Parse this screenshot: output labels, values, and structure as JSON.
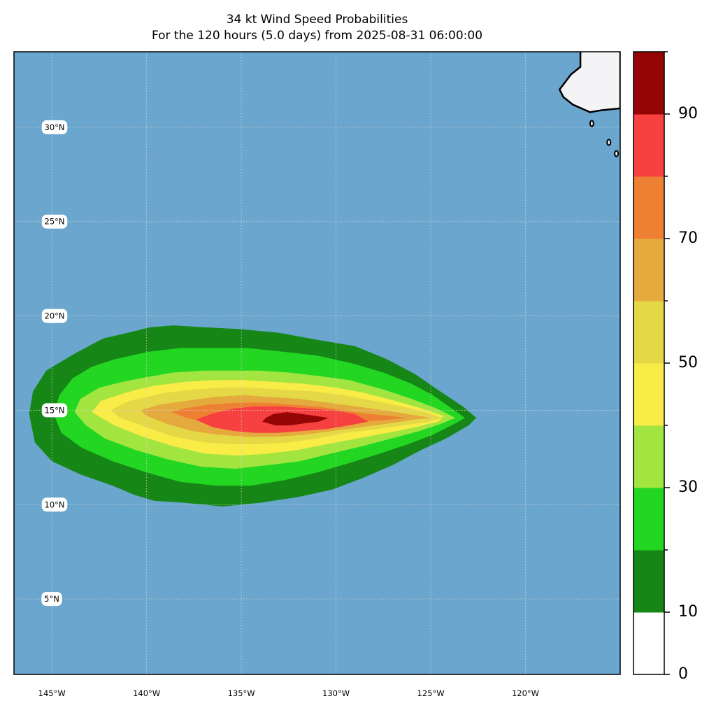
{
  "title": "34 kt Wind Speed Probabilities",
  "subtitle": "For the 120 hours (5.0 days) from 2025-08-31 06:00:00",
  "colors": {
    "ocean": "#6aa6cd",
    "land": "#f4f4f6",
    "grid": "#d8d8d8"
  },
  "map": {
    "lon_range": [
      -147,
      -115
    ],
    "lat_range": [
      1,
      34
    ],
    "lat_labels": [
      {
        "lat": 30,
        "label": "30°N"
      },
      {
        "lat": 25,
        "label": "25°N"
      },
      {
        "lat": 20,
        "label": "20°N"
      },
      {
        "lat": 15,
        "label": "15°N"
      },
      {
        "lat": 10,
        "label": "10°N"
      },
      {
        "lat": 5,
        "label": "5°N"
      }
    ],
    "lon_labels": [
      {
        "lon": -145,
        "label": "145°W"
      },
      {
        "lon": -140,
        "label": "140°W"
      },
      {
        "lon": -135,
        "label": "135°W"
      },
      {
        "lon": -130,
        "label": "130°W"
      },
      {
        "lon": -125,
        "label": "125°W"
      },
      {
        "lon": -120,
        "label": "120°W"
      }
    ]
  },
  "colorbar": {
    "bounds": [
      0,
      10,
      20,
      30,
      40,
      50,
      60,
      70,
      80,
      90,
      100
    ],
    "colors": [
      "#ffffff",
      "#168716",
      "#22d622",
      "#a3e540",
      "#f9ec47",
      "#e5d846",
      "#e5aa3d",
      "#ee8033",
      "#f74040",
      "#950505",
      "#8229d9"
    ],
    "tick_labels": [
      {
        "value": 0,
        "label": "0"
      },
      {
        "value": 10,
        "label": "10"
      },
      {
        "value": 30,
        "label": "30"
      },
      {
        "value": 50,
        "label": "50"
      },
      {
        "value": 70,
        "label": "70"
      },
      {
        "value": 90,
        "label": "90"
      }
    ]
  },
  "probability_contours": [
    {
      "level": 10,
      "color": "#168716",
      "pts": [
        [
          -142.3,
          18.8
        ],
        [
          -141,
          19.1
        ],
        [
          -139.8,
          19.4
        ],
        [
          -138.6,
          19.5
        ],
        [
          -137,
          19.4
        ],
        [
          -135,
          19.3
        ],
        [
          -133,
          19.1
        ],
        [
          -130.8,
          18.7
        ],
        [
          -129,
          18.4
        ],
        [
          -127.3,
          17.7
        ],
        [
          -125.8,
          16.9
        ],
        [
          -124.5,
          16
        ],
        [
          -123.3,
          15.2
        ],
        [
          -122.6,
          14.6
        ],
        [
          -123,
          14.2
        ],
        [
          -124.2,
          13.5
        ],
        [
          -125.5,
          12.9
        ],
        [
          -127,
          12.1
        ],
        [
          -128.6,
          11.4
        ],
        [
          -130.2,
          10.8
        ],
        [
          -132,
          10.4
        ],
        [
          -134,
          10.1
        ],
        [
          -136,
          9.9
        ],
        [
          -138,
          10.1
        ],
        [
          -139.6,
          10.2
        ],
        [
          -140.6,
          10.5
        ],
        [
          -141.8,
          11
        ],
        [
          -143.5,
          11.6
        ],
        [
          -145,
          12.3
        ],
        [
          -145.9,
          13.3
        ],
        [
          -146.2,
          14.8
        ],
        [
          -146,
          16
        ],
        [
          -145.3,
          17.1
        ],
        [
          -143.8,
          18
        ]
      ]
    },
    {
      "level": 20,
      "color": "#22d622",
      "pts": [
        [
          -141.7,
          17.7
        ],
        [
          -139.9,
          18.1
        ],
        [
          -138.2,
          18.3
        ],
        [
          -136.6,
          18.3
        ],
        [
          -134.7,
          18.3
        ],
        [
          -132.8,
          18.1
        ],
        [
          -131,
          17.9
        ],
        [
          -129.2,
          17.5
        ],
        [
          -127.5,
          17
        ],
        [
          -126,
          16.4
        ],
        [
          -124.9,
          15.8
        ],
        [
          -123.9,
          15.1
        ],
        [
          -123.2,
          14.6
        ],
        [
          -123.7,
          14.3
        ],
        [
          -124.9,
          13.7
        ],
        [
          -126.2,
          13.2
        ],
        [
          -127.7,
          12.7
        ],
        [
          -129.3,
          12.2
        ],
        [
          -131,
          11.7
        ],
        [
          -132.7,
          11.3
        ],
        [
          -134.5,
          11
        ],
        [
          -136.3,
          11
        ],
        [
          -138.2,
          11.2
        ],
        [
          -140,
          11.7
        ],
        [
          -141.8,
          12.3
        ],
        [
          -143.4,
          13
        ],
        [
          -144.5,
          13.8
        ],
        [
          -144.9,
          14.8
        ],
        [
          -144.6,
          15.8
        ],
        [
          -143.9,
          16.7
        ],
        [
          -142.9,
          17.3
        ]
      ]
    },
    {
      "level": 30,
      "color": "#a3e540",
      "pts": [
        [
          -140.3,
          16.7
        ],
        [
          -138.6,
          17
        ],
        [
          -137,
          17.1
        ],
        [
          -135.5,
          17.1
        ],
        [
          -134,
          17.1
        ],
        [
          -132.5,
          17
        ],
        [
          -130.8,
          16.8
        ],
        [
          -129.3,
          16.6
        ],
        [
          -127.5,
          16.1
        ],
        [
          -126,
          15.6
        ],
        [
          -124.7,
          15.1
        ],
        [
          -123.7,
          14.6
        ],
        [
          -124.4,
          14.3
        ],
        [
          -125.6,
          13.9
        ],
        [
          -127.1,
          13.5
        ],
        [
          -128.6,
          13.1
        ],
        [
          -130.3,
          12.7
        ],
        [
          -131.9,
          12.3
        ],
        [
          -133.5,
          12.1
        ],
        [
          -135.3,
          11.9
        ],
        [
          -137.1,
          12
        ],
        [
          -138.9,
          12.4
        ],
        [
          -140.6,
          12.9
        ],
        [
          -142.2,
          13.5
        ],
        [
          -143.2,
          14.2
        ],
        [
          -143.8,
          14.9
        ],
        [
          -143.5,
          15.6
        ],
        [
          -142.5,
          16.2
        ],
        [
          -141.3,
          16.5
        ]
      ]
    },
    {
      "level": 40,
      "color": "#f9ec47",
      "pts": [
        [
          -139.6,
          16.3
        ],
        [
          -138,
          16.5
        ],
        [
          -136.4,
          16.6
        ],
        [
          -134.8,
          16.6
        ],
        [
          -133.2,
          16.5
        ],
        [
          -131.6,
          16.4
        ],
        [
          -130,
          16.2
        ],
        [
          -128.4,
          15.9
        ],
        [
          -126.9,
          15.5
        ],
        [
          -125.5,
          15.1
        ],
        [
          -124.3,
          14.7
        ],
        [
          -124.6,
          14.4
        ],
        [
          -125.8,
          14.1
        ],
        [
          -127.3,
          13.8
        ],
        [
          -128.9,
          13.5
        ],
        [
          -130.5,
          13.2
        ],
        [
          -132,
          12.9
        ],
        [
          -133.6,
          12.7
        ],
        [
          -135.2,
          12.6
        ],
        [
          -136.9,
          12.7
        ],
        [
          -138.6,
          13.1
        ],
        [
          -140.2,
          13.6
        ],
        [
          -141.7,
          14.2
        ],
        [
          -142.9,
          14.9
        ],
        [
          -142.4,
          15.5
        ],
        [
          -141.2,
          15.9
        ],
        [
          -140.5,
          16.1
        ]
      ]
    },
    {
      "level": 50,
      "color": "#e5d846",
      "pts": [
        [
          -139.2,
          15.9
        ],
        [
          -137.6,
          16.1
        ],
        [
          -136,
          16.2
        ],
        [
          -134.4,
          16.2
        ],
        [
          -132.8,
          16.1
        ],
        [
          -131.2,
          16
        ],
        [
          -129.6,
          15.8
        ],
        [
          -128,
          15.5
        ],
        [
          -126.5,
          15.2
        ],
        [
          -125.3,
          14.9
        ],
        [
          -124.4,
          14.6
        ],
        [
          -125.1,
          14.4
        ],
        [
          -126.4,
          14.2
        ],
        [
          -127.9,
          14
        ],
        [
          -129.5,
          13.8
        ],
        [
          -131,
          13.5
        ],
        [
          -132.5,
          13.3
        ],
        [
          -134,
          13.2
        ],
        [
          -135.5,
          13.2
        ],
        [
          -137,
          13.3
        ],
        [
          -138.6,
          13.6
        ],
        [
          -140,
          14.1
        ],
        [
          -141.4,
          14.6
        ],
        [
          -141.9,
          15
        ],
        [
          -140.9,
          15.5
        ],
        [
          -140,
          15.7
        ]
      ]
    },
    {
      "level": 60,
      "color": "#e5aa3d",
      "pts": [
        [
          -137.9,
          15.5
        ],
        [
          -136.4,
          15.7
        ],
        [
          -134.9,
          15.8
        ],
        [
          -133.4,
          15.7
        ],
        [
          -131.9,
          15.6
        ],
        [
          -130.4,
          15.4
        ],
        [
          -128.9,
          15.2
        ],
        [
          -127.5,
          15
        ],
        [
          -126.2,
          14.8
        ],
        [
          -125,
          14.6
        ],
        [
          -125.9,
          14.5
        ],
        [
          -127.2,
          14.3
        ],
        [
          -128.7,
          14.1
        ],
        [
          -130.2,
          13.9
        ],
        [
          -131.7,
          13.7
        ],
        [
          -133.2,
          13.6
        ],
        [
          -134.7,
          13.6
        ],
        [
          -136.2,
          13.7
        ],
        [
          -137.6,
          13.9
        ],
        [
          -139,
          14.3
        ],
        [
          -140,
          14.7
        ],
        [
          -140.3,
          15
        ],
        [
          -139.3,
          15.3
        ]
      ]
    },
    {
      "level": 70,
      "color": "#ee8033",
      "pts": [
        [
          -136.7,
          15.3
        ],
        [
          -135.2,
          15.4
        ],
        [
          -133.8,
          15.4
        ],
        [
          -132.4,
          15.3
        ],
        [
          -131,
          15.2
        ],
        [
          -129.6,
          15
        ],
        [
          -128.3,
          14.8
        ],
        [
          -127.1,
          14.7
        ],
        [
          -126.3,
          14.6
        ],
        [
          -127.2,
          14.5
        ],
        [
          -128.4,
          14.4
        ],
        [
          -129.7,
          14.2
        ],
        [
          -131.1,
          14.1
        ],
        [
          -132.5,
          14
        ],
        [
          -133.9,
          14
        ],
        [
          -135.3,
          14.1
        ],
        [
          -136.6,
          14.3
        ],
        [
          -137.9,
          14.6
        ],
        [
          -138.7,
          14.9
        ],
        [
          -138,
          15.1
        ]
      ]
    },
    {
      "level": 80,
      "color": "#f74040",
      "pts": [
        [
          -134.3,
          15.2
        ],
        [
          -132.8,
          15.2
        ],
        [
          -131.5,
          15.1
        ],
        [
          -130.2,
          15
        ],
        [
          -129,
          14.8
        ],
        [
          -128.3,
          14.4
        ],
        [
          -129.3,
          14.2
        ],
        [
          -130.5,
          14
        ],
        [
          -131.8,
          13.9
        ],
        [
          -133.1,
          13.8
        ],
        [
          -134.3,
          13.8
        ],
        [
          -135.4,
          13.9
        ],
        [
          -136.5,
          14.1
        ],
        [
          -137.4,
          14.5
        ],
        [
          -136.6,
          14.8
        ],
        [
          -135.4,
          15.1
        ]
      ]
    },
    {
      "level": 90,
      "color": "#950505",
      "pts": [
        [
          -133.3,
          14.8
        ],
        [
          -132.6,
          14.9
        ],
        [
          -131.8,
          14.8
        ],
        [
          -131.1,
          14.7
        ],
        [
          -130.4,
          14.6
        ],
        [
          -130.9,
          14.4
        ],
        [
          -131.7,
          14.3
        ],
        [
          -132.4,
          14.2
        ],
        [
          -133.2,
          14.2
        ],
        [
          -133.9,
          14.4
        ],
        [
          -133.7,
          14.6
        ]
      ]
    }
  ]
}
